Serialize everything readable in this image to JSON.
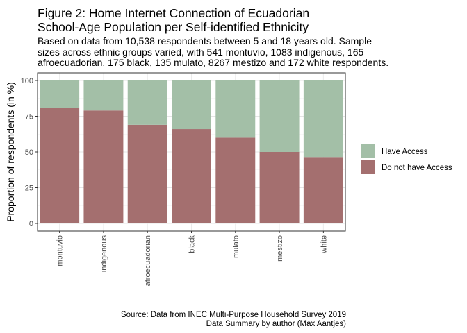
{
  "header": {
    "title_line1": "Figure 2: Home Internet Connection of Ecuadorian",
    "title_line2": "School-Age Population per Self-identified Ethnicity",
    "subtitle_line1": "Based on data from 10,538 respondents between 5 and 18 years old. Sample",
    "subtitle_line2": "sizes across ethnic groups varied, with 541 montuvio, 1083 indigenous, 165",
    "subtitle_line3": "afroecuadorian, 175 black, 135 mulato, 8267 mestizo and 172 white respondents."
  },
  "caption": {
    "line1": "Source: Data from INEC Multi-Purpose Household Survey 2019",
    "line2": "Data Summary by author (Max Aantjes)"
  },
  "chart_data": {
    "type": "bar",
    "stacked": true,
    "categories": [
      "montuvio",
      "indigenous",
      "afroecuadorian",
      "black",
      "mulato",
      "mestizo",
      "white"
    ],
    "series": [
      {
        "name": "Have Access",
        "color": "#a3bfa7",
        "values": [
          19,
          21,
          31,
          34,
          40,
          50,
          54
        ]
      },
      {
        "name": "Do not have Access",
        "color": "#a46f6f",
        "values": [
          81,
          79,
          69,
          66,
          60,
          50,
          46
        ]
      }
    ],
    "ylabel": "Proportion of respondents (in %)",
    "xlabel": "",
    "ylim": [
      0,
      100
    ],
    "yticks": [
      0,
      25,
      50,
      75,
      100
    ],
    "grid": true,
    "legend_position": "right"
  }
}
